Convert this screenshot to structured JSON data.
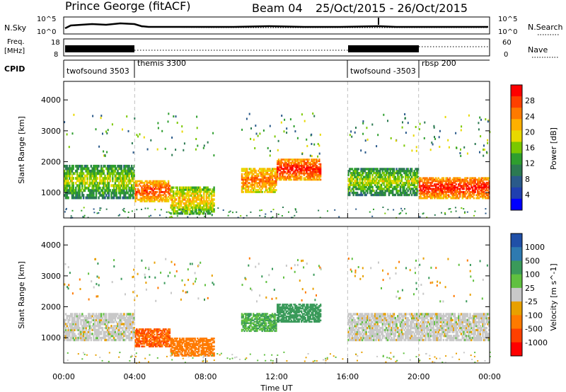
{
  "header": {
    "station": "Prince George (fitACF)",
    "beam": "Beam 04",
    "dates": "25/Oct/2015 - 26/Oct/2015"
  },
  "noise_panel": {
    "left_label": "N.Sky",
    "right_label": "N.Search",
    "left_ticks": [
      "10^5",
      "10^0"
    ],
    "right_ticks": [
      "10^5",
      "10^0"
    ]
  },
  "freq_panel": {
    "left_label_1": "Freq.",
    "left_label_2": "[MHz]",
    "right_label": "Nave",
    "left_ticks": [
      "18",
      "8"
    ],
    "right_ticks": [
      "60",
      "0"
    ]
  },
  "cpid": {
    "label": "CPID",
    "segments": [
      {
        "name": "twofsound 3503",
        "start_h": 0,
        "end_h": 4
      },
      {
        "name": "themis 3300",
        "start_h": 4,
        "end_h": 16
      },
      {
        "name": "twofsound -3503",
        "start_h": 16,
        "end_h": 20
      },
      {
        "name": "rbsp 200",
        "start_h": 20,
        "end_h": 24
      }
    ]
  },
  "xaxis": {
    "label": "Time UT",
    "tick_labels": [
      "00:00",
      "04:00",
      "08:00",
      "12:00",
      "16:00",
      "20:00",
      "00:00"
    ]
  },
  "colorbars": {
    "power": {
      "label": "Power [dB]",
      "tick_labels": [
        "28",
        "24",
        "20",
        "16",
        "12",
        "8",
        "4"
      ],
      "colors": [
        "#ff0000",
        "#ff4000",
        "#ff7a00",
        "#ffb000",
        "#e8d800",
        "#7ac800",
        "#2e9e2e",
        "#2c7a52",
        "#2a5a8a",
        "#1f3fb0",
        "#0000ff"
      ]
    },
    "velocity": {
      "label": "Velocity [m s^-1]",
      "tick_labels": [
        "1000",
        "500",
        "100",
        "25",
        "-25",
        "-100",
        "-500",
        "-1000"
      ],
      "colors": [
        "#2050a8",
        "#2e7ab0",
        "#3a9a5a",
        "#60c040",
        "#c8c8c8",
        "#e8a000",
        "#ff7a00",
        "#ff4000",
        "#ff0000"
      ]
    }
  },
  "chart_data": [
    {
      "type": "heatmap",
      "title": "Prince George (fitACF) Beam 04 25/Oct/2015 - 26/Oct/2015",
      "xlabel": "Time UT",
      "ylabel": "Slant Range [km]",
      "xlim": [
        0,
        24
      ],
      "ylim": [
        180,
        4600
      ],
      "yticks": [
        1000,
        2000,
        3000,
        4000
      ],
      "colorbar_label": "Power [dB]",
      "colorbar_range": [
        0,
        32
      ],
      "bands": [
        {
          "t0": 0.0,
          "t1": 4.0,
          "r0": 800,
          "r1": 1900,
          "value": 14
        },
        {
          "t0": 4.0,
          "t1": 6.0,
          "r0": 700,
          "r1": 1400,
          "value": 24
        },
        {
          "t0": 6.0,
          "t1": 8.5,
          "r0": 300,
          "r1": 1200,
          "value": 18
        },
        {
          "t0": 10.0,
          "t1": 12.0,
          "r0": 1000,
          "r1": 1800,
          "value": 22
        },
        {
          "t0": 12.0,
          "t1": 14.5,
          "r0": 1400,
          "r1": 2100,
          "value": 26
        },
        {
          "t0": 16.0,
          "t1": 20.0,
          "r0": 900,
          "r1": 1800,
          "value": 14
        },
        {
          "t0": 20.0,
          "t1": 24.0,
          "r0": 800,
          "r1": 1500,
          "value": 26
        }
      ]
    },
    {
      "type": "heatmap",
      "title": "",
      "xlabel": "Time UT",
      "ylabel": "Slant Range [km]",
      "xlim": [
        0,
        24
      ],
      "ylim": [
        180,
        4600
      ],
      "yticks": [
        1000,
        2000,
        3000,
        4000
      ],
      "colorbar_label": "Velocity [m s^-1]",
      "colorbar_range": [
        -1000,
        1000
      ],
      "bands": [
        {
          "t0": 0.0,
          "t1": 4.0,
          "r0": 900,
          "r1": 1800,
          "value": 0
        },
        {
          "t0": 4.0,
          "t1": 6.0,
          "r0": 700,
          "r1": 1300,
          "value": -500
        },
        {
          "t0": 6.0,
          "t1": 8.5,
          "r0": 400,
          "r1": 1000,
          "value": -300
        },
        {
          "t0": 10.0,
          "t1": 12.0,
          "r0": 1200,
          "r1": 1800,
          "value": 100
        },
        {
          "t0": 12.0,
          "t1": 14.5,
          "r0": 1500,
          "r1": 2100,
          "value": 300
        },
        {
          "t0": 16.0,
          "t1": 24.0,
          "r0": 900,
          "r1": 1800,
          "value": 0
        }
      ]
    }
  ]
}
